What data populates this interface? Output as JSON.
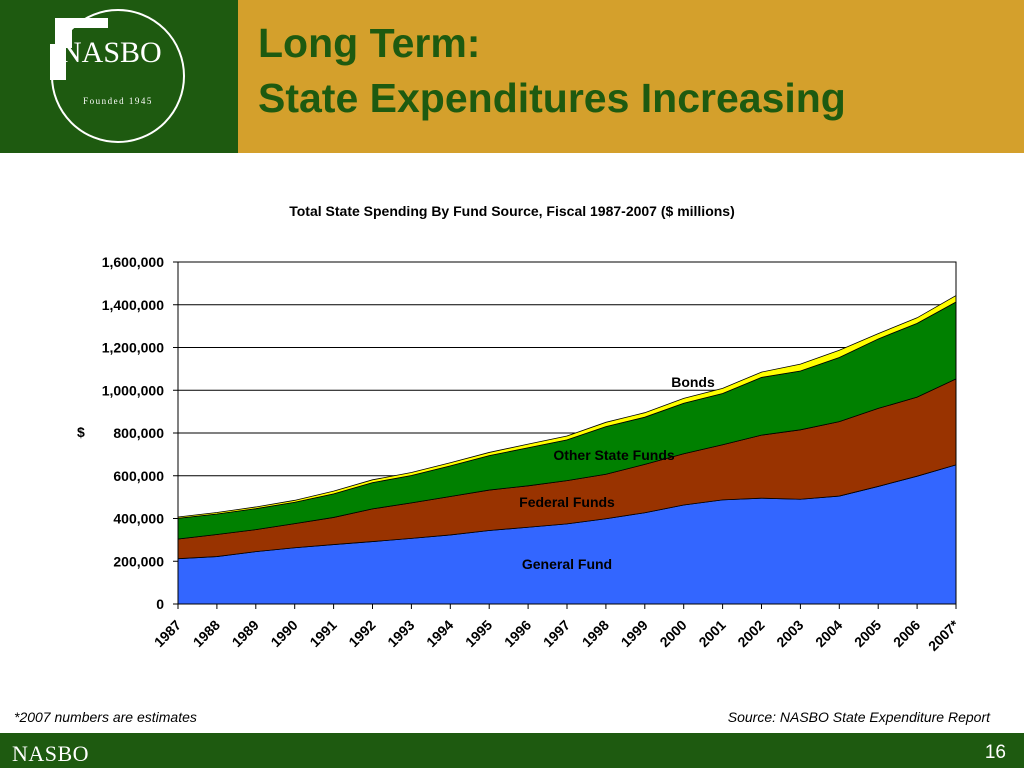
{
  "slide": {
    "title_line1": "Long Term:",
    "title_line2": "State Expenditures Increasing",
    "logo_text": "NASBO",
    "logo_subtext": "Founded 1945",
    "footer_brand": "NASBO",
    "page_number": "16",
    "footnote": "*2007 numbers are estimates",
    "source": "Source: NASBO State Expenditure Report"
  },
  "colors": {
    "dark_green": "#1e5a10",
    "gold": "#d4a02c",
    "general_fund": "#3366ff",
    "federal_funds": "#993300",
    "other_state_funds": "#008000",
    "bonds": "#ffff00"
  },
  "chart_data": {
    "type": "area",
    "stacked": true,
    "title": "Total State Spending By Fund Source, Fiscal 1987-2007 ($ millions)",
    "ylabel": "$",
    "xlabel": "",
    "ylim": [
      0,
      1600000
    ],
    "yticks": [
      0,
      200000,
      400000,
      600000,
      800000,
      1000000,
      1200000,
      1400000,
      1600000
    ],
    "ytick_labels": [
      "0",
      "200,000",
      "400,000",
      "600,000",
      "800,000",
      "1,000,000",
      "1,200,000",
      "1,400,000",
      "1,600,000"
    ],
    "categories": [
      "1987",
      "1988",
      "1989",
      "1990",
      "1991",
      "1992",
      "1993",
      "1994",
      "1995",
      "1996",
      "1997",
      "1998",
      "1999",
      "2000",
      "2001",
      "2002",
      "2003",
      "2004",
      "2005",
      "2006",
      "2007*"
    ],
    "grid": true,
    "series": [
      {
        "name": "General Fund",
        "color": "#3366ff",
        "values": [
          212000,
          222000,
          245000,
          263000,
          278000,
          292000,
          307000,
          323000,
          344000,
          359000,
          375000,
          399000,
          427000,
          463000,
          487000,
          495000,
          490000,
          505000,
          550000,
          598000,
          651000
        ]
      },
      {
        "name": "Federal Funds",
        "color": "#993300",
        "values": [
          92000,
          103000,
          103000,
          113000,
          127000,
          153000,
          166000,
          180000,
          189000,
          194000,
          202000,
          208000,
          226000,
          240000,
          258000,
          295000,
          325000,
          348000,
          365000,
          370000,
          402000
        ]
      },
      {
        "name": "Other State Funds",
        "color": "#008000",
        "values": [
          97000,
          96000,
          98000,
          100000,
          110000,
          123000,
          128000,
          143000,
          161000,
          178000,
          191000,
          223000,
          221000,
          236000,
          240000,
          270000,
          275000,
          300000,
          325000,
          345000,
          360000
        ]
      },
      {
        "name": "Bonds",
        "color": "#ffff00",
        "values": [
          6000,
          7000,
          8000,
          9000,
          13000,
          13000,
          14000,
          15000,
          15000,
          17000,
          18000,
          20000,
          21000,
          23000,
          24000,
          25000,
          32000,
          34000,
          25000,
          26000,
          30000
        ]
      }
    ]
  }
}
